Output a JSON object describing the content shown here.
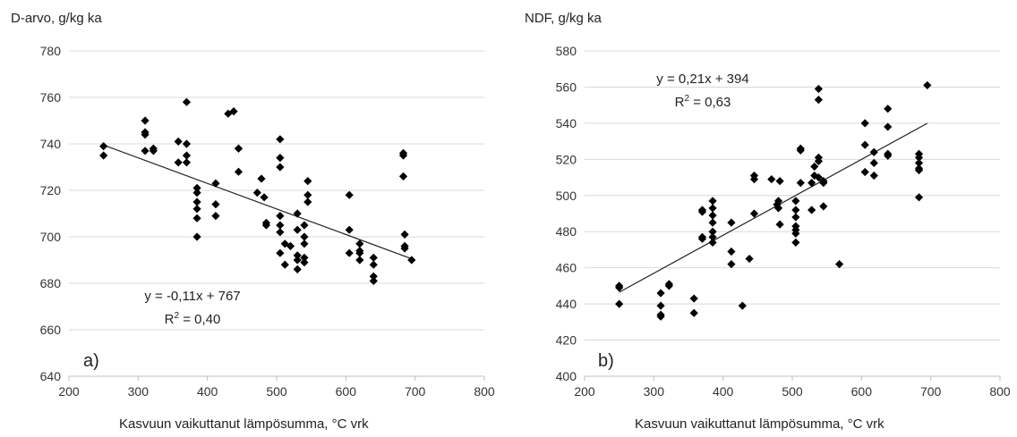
{
  "chart_data": [
    {
      "type": "scatter",
      "title": "",
      "ylabel": "D-arvo, g/kg ka",
      "xlabel": "Kasvuun vaikuttanut lämpösumma, °C vrk",
      "panel_label": "a)",
      "xlim": [
        200,
        800
      ],
      "ylim": [
        640,
        780
      ],
      "xticks": [
        "200",
        "300",
        "400",
        "500",
        "600",
        "700",
        "800"
      ],
      "yticks": [
        "640",
        "660",
        "680",
        "700",
        "720",
        "740",
        "760",
        "780"
      ],
      "grid": "horizontal",
      "marker_color": "#000000",
      "trendline": {
        "slope": -0.11,
        "intercept": 767,
        "x_range": [
          250,
          695
        ]
      },
      "equation": "y = -0,11x + 767",
      "r2_label": "R",
      "r2_value": " = 0,40",
      "points": [
        [
          250,
          739
        ],
        [
          250,
          735
        ],
        [
          310,
          750
        ],
        [
          310,
          745
        ],
        [
          310,
          744
        ],
        [
          310,
          737
        ],
        [
          322,
          738
        ],
        [
          322,
          737
        ],
        [
          358,
          741
        ],
        [
          358,
          732
        ],
        [
          370,
          758
        ],
        [
          370,
          740
        ],
        [
          370,
          735
        ],
        [
          370,
          732
        ],
        [
          385,
          721
        ],
        [
          385,
          719
        ],
        [
          385,
          715
        ],
        [
          385,
          712
        ],
        [
          385,
          708
        ],
        [
          385,
          700
        ],
        [
          412,
          723
        ],
        [
          412,
          714
        ],
        [
          412,
          709
        ],
        [
          430,
          753
        ],
        [
          438,
          754
        ],
        [
          445,
          738
        ],
        [
          445,
          738
        ],
        [
          445,
          728
        ],
        [
          472,
          719
        ],
        [
          478,
          725
        ],
        [
          482,
          717
        ],
        [
          485,
          706
        ],
        [
          485,
          705
        ],
        [
          505,
          742
        ],
        [
          505,
          734
        ],
        [
          505,
          730
        ],
        [
          505,
          709
        ],
        [
          505,
          705
        ],
        [
          505,
          702
        ],
        [
          505,
          693
        ],
        [
          512,
          697
        ],
        [
          512,
          688
        ],
        [
          520,
          696
        ],
        [
          530,
          710
        ],
        [
          530,
          703
        ],
        [
          530,
          692
        ],
        [
          530,
          690
        ],
        [
          530,
          686
        ],
        [
          540,
          705
        ],
        [
          540,
          700
        ],
        [
          540,
          697
        ],
        [
          540,
          691
        ],
        [
          540,
          689
        ],
        [
          545,
          724
        ],
        [
          545,
          718
        ],
        [
          545,
          715
        ],
        [
          605,
          718
        ],
        [
          605,
          703
        ],
        [
          605,
          693
        ],
        [
          620,
          697
        ],
        [
          620,
          694
        ],
        [
          620,
          693
        ],
        [
          620,
          690
        ],
        [
          640,
          691
        ],
        [
          640,
          688
        ],
        [
          640,
          683
        ],
        [
          640,
          681
        ],
        [
          683,
          736
        ],
        [
          683,
          735
        ],
        [
          683,
          726
        ],
        [
          685,
          701
        ],
        [
          685,
          696
        ],
        [
          685,
          695
        ],
        [
          695,
          690
        ]
      ]
    },
    {
      "type": "scatter",
      "title": "",
      "ylabel": "NDF, g/kg ka",
      "xlabel": "Kasvuun vaikuttanut lämpösumma, °C vrk",
      "panel_label": "b)",
      "xlim": [
        200,
        800
      ],
      "ylim": [
        400,
        580
      ],
      "xticks": [
        "200",
        "300",
        "400",
        "500",
        "600",
        "700",
        "800"
      ],
      "yticks": [
        "400",
        "420",
        "440",
        "460",
        "480",
        "500",
        "520",
        "540",
        "560",
        "580"
      ],
      "grid": "horizontal",
      "marker_color": "#000000",
      "trendline": {
        "slope": 0.21,
        "intercept": 394,
        "x_range": [
          250,
          695
        ]
      },
      "equation": "y = 0,21x + 394",
      "r2_label": "R",
      "r2_value": " = 0,63",
      "points": [
        [
          250,
          450
        ],
        [
          250,
          449
        ],
        [
          250,
          440
        ],
        [
          310,
          446
        ],
        [
          310,
          439
        ],
        [
          310,
          434
        ],
        [
          310,
          433
        ],
        [
          322,
          451
        ],
        [
          322,
          450
        ],
        [
          358,
          443
        ],
        [
          358,
          435
        ],
        [
          370,
          492
        ],
        [
          370,
          491
        ],
        [
          370,
          477
        ],
        [
          370,
          476
        ],
        [
          385,
          497
        ],
        [
          385,
          493
        ],
        [
          385,
          489
        ],
        [
          385,
          485
        ],
        [
          385,
          480
        ],
        [
          385,
          477
        ],
        [
          385,
          474
        ],
        [
          412,
          485
        ],
        [
          412,
          469
        ],
        [
          412,
          462
        ],
        [
          428,
          439
        ],
        [
          438,
          465
        ],
        [
          445,
          511
        ],
        [
          445,
          509
        ],
        [
          445,
          490
        ],
        [
          470,
          509
        ],
        [
          478,
          495
        ],
        [
          480,
          497
        ],
        [
          480,
          493
        ],
        [
          482,
          508
        ],
        [
          482,
          484
        ],
        [
          505,
          497
        ],
        [
          505,
          492
        ],
        [
          505,
          488
        ],
        [
          505,
          483
        ],
        [
          505,
          481
        ],
        [
          505,
          479
        ],
        [
          505,
          474
        ],
        [
          512,
          526
        ],
        [
          512,
          525
        ],
        [
          512,
          507
        ],
        [
          528,
          507
        ],
        [
          528,
          492
        ],
        [
          532,
          516
        ],
        [
          532,
          511
        ],
        [
          538,
          559
        ],
        [
          538,
          553
        ],
        [
          538,
          521
        ],
        [
          538,
          519
        ],
        [
          538,
          510
        ],
        [
          545,
          508
        ],
        [
          545,
          507
        ],
        [
          545,
          494
        ],
        [
          568,
          462
        ],
        [
          605,
          540
        ],
        [
          605,
          528
        ],
        [
          605,
          513
        ],
        [
          618,
          524
        ],
        [
          618,
          518
        ],
        [
          618,
          511
        ],
        [
          638,
          548
        ],
        [
          638,
          538
        ],
        [
          638,
          523
        ],
        [
          638,
          522
        ],
        [
          683,
          523
        ],
        [
          683,
          521
        ],
        [
          683,
          518
        ],
        [
          683,
          515
        ],
        [
          683,
          514
        ],
        [
          683,
          499
        ],
        [
          695,
          561
        ]
      ]
    }
  ]
}
